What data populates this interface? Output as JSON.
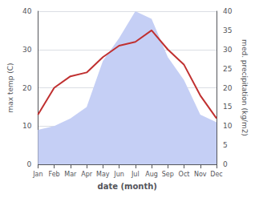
{
  "chart_data": {
    "type": "line",
    "categories": [
      "Jan",
      "Feb",
      "Mar",
      "Apr",
      "May",
      "Jun",
      "Jul",
      "Aug",
      "Sep",
      "Oct",
      "Nov",
      "Dec"
    ],
    "xlabel": "date (month)",
    "ylabel": "max temp (C)",
    "y2label": "med. precipitation (kg/m2)",
    "ylim": [
      0,
      40
    ],
    "yticks": [
      0,
      10,
      20,
      30,
      40
    ],
    "y2lim": [
      0,
      40
    ],
    "y2ticks": [
      0,
      5,
      10,
      15,
      20,
      25,
      30,
      35,
      40
    ],
    "grid": true,
    "series": [
      {
        "type": "area",
        "color": "#c5cff5",
        "axis": "y2",
        "values": [
          9,
          10,
          12,
          15,
          27,
          33,
          40,
          38,
          28,
          22,
          13,
          11
        ]
      },
      {
        "type": "line",
        "color": "#c03030",
        "values": [
          13,
          20,
          23,
          24,
          28,
          31,
          32,
          35,
          30,
          26,
          18,
          12
        ]
      }
    ]
  }
}
